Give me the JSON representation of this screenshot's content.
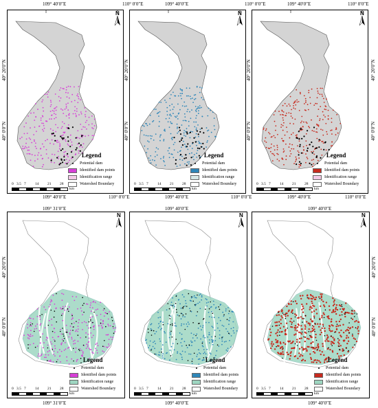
{
  "colors": {
    "watershed_fill": "#d4d4d4",
    "range_green": "#9ed6c1",
    "pink": "#d63fd6",
    "blue": "#2e86b8",
    "red": "#c72a1e"
  },
  "top_row": {
    "coord_top_left": "109° 40′0″E",
    "coord_top_right": "110° 0′0″E",
    "coord_bottom_right": "110° 0′0″E",
    "lat_labels": [
      "40° 20′0″N",
      "40° 0′0″N"
    ]
  },
  "bottom_row": {
    "coord_top_a": "109° 31′0″E",
    "coord_top_b": "109° 40′0″E",
    "coord_top_c": "109° 40′0″E",
    "coord_bottom_a": "109° 31′0″E",
    "coord_bottom_b": "109° 40′0″E",
    "coord_bottom_c": "109° 40′0″E",
    "lat_labels": [
      "40° 20′0″N",
      "40° 0′0″N"
    ]
  },
  "north_label": "N",
  "legend": {
    "title": "Legend",
    "potential": "Potential dam",
    "identified": "Identified dam points",
    "range": "Identification range",
    "boundary": "Watershed Boundary"
  },
  "scale": {
    "ticks": [
      "0",
      "3.5",
      "7",
      "14",
      "21",
      "28"
    ],
    "unit": "km"
  },
  "panels": [
    {
      "id": "a",
      "accent": "pink",
      "range_color": "#f2c9e6"
    },
    {
      "id": "b",
      "accent": "blue",
      "range_color": "#d8e8e6"
    },
    {
      "id": "c",
      "accent": "red",
      "range_color": "#f2c9e6"
    },
    {
      "id": "d",
      "accent": "pink",
      "range_color": "#9ed6c1"
    },
    {
      "id": "e",
      "accent": "blue",
      "range_color": "#9ed6c1"
    },
    {
      "id": "f",
      "accent": "red",
      "range_color": "#9ed6c1"
    }
  ]
}
